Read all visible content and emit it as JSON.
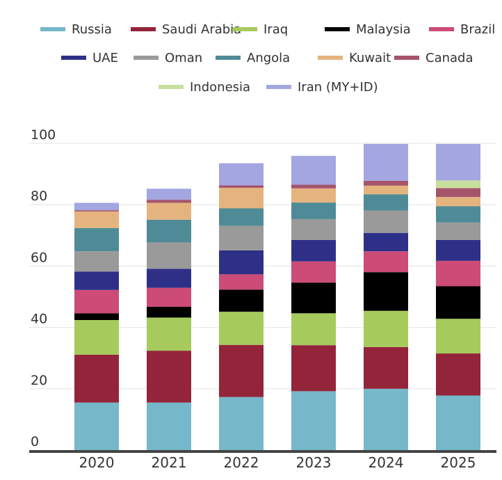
{
  "chart_data": {
    "type": "stacked-bar",
    "title": "",
    "xlabel": "",
    "ylabel": "",
    "ylim": [
      0,
      100
    ],
    "yticks": [
      0,
      20,
      40,
      60,
      80,
      100
    ],
    "grid": true,
    "legend_position": "top",
    "categories": [
      "2020",
      "2021",
      "2022",
      "2023",
      "2024",
      "2025"
    ],
    "series": [
      {
        "name": "Russia",
        "color": "#76b7c9",
        "values": [
          15.5,
          15.5,
          17.3,
          19.2,
          20.0,
          17.8
        ]
      },
      {
        "name": "Saudi Arabia",
        "color": "#94243a",
        "values": [
          15.6,
          16.9,
          17.0,
          15.0,
          13.6,
          13.7
        ]
      },
      {
        "name": "Iraq",
        "color": "#a6ca5c",
        "values": [
          11.3,
          10.8,
          10.8,
          10.4,
          11.8,
          11.3
        ]
      },
      {
        "name": "Malaysia",
        "color": "#000000",
        "values": [
          2.2,
          3.5,
          7.2,
          10.0,
          12.6,
          10.6
        ]
      },
      {
        "name": "Brazil",
        "color": "#cc4b77",
        "values": [
          7.6,
          6.2,
          5.0,
          6.9,
          6.8,
          8.3
        ]
      },
      {
        "name": "UAE",
        "color": "#2e3088",
        "values": [
          6.0,
          6.2,
          7.8,
          7.0,
          6.0,
          6.8
        ]
      },
      {
        "name": "Oman",
        "color": "#9a9a9a",
        "values": [
          6.6,
          8.6,
          8.0,
          6.8,
          7.3,
          5.7
        ]
      },
      {
        "name": "Angola",
        "color": "#4f8b96",
        "values": [
          7.6,
          7.4,
          5.7,
          5.4,
          5.3,
          5.3
        ]
      },
      {
        "name": "Kuwait",
        "color": "#e5b47e",
        "values": [
          5.4,
          5.5,
          6.7,
          4.6,
          2.8,
          3.0
        ]
      },
      {
        "name": "Canada",
        "color": "#a5546c",
        "values": [
          0.4,
          1.0,
          0.8,
          1.2,
          1.6,
          2.9
        ]
      },
      {
        "name": "Indonesia",
        "color": "#c7df9d",
        "values": [
          0.0,
          0.0,
          0.0,
          0.0,
          0.0,
          2.5
        ]
      },
      {
        "name": "Iran (MY+ID)",
        "color": "#a3a6e0",
        "values": [
          2.4,
          3.6,
          7.2,
          9.4,
          12.0,
          11.9
        ]
      }
    ]
  }
}
